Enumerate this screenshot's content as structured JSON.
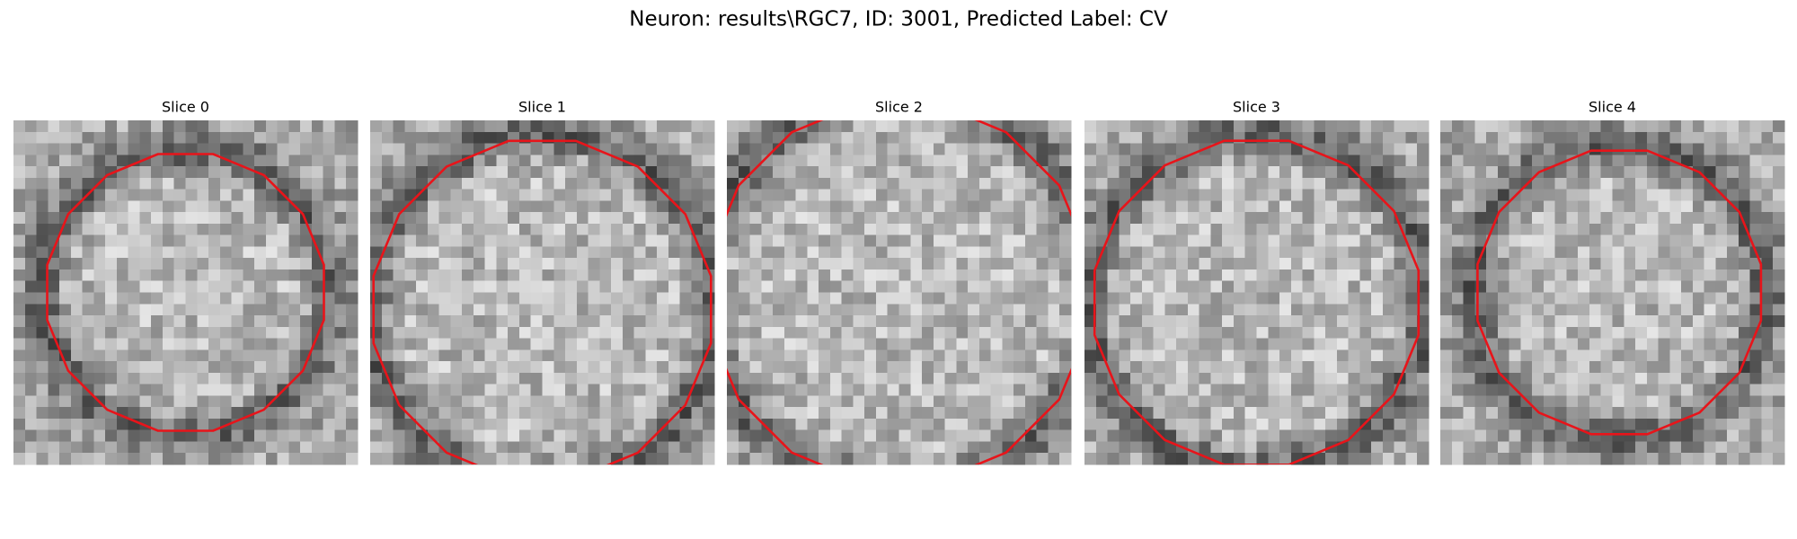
{
  "title": "Neuron: results\\RGC7, ID: 3001, Predicted Label: CV",
  "panels": [
    {
      "title": "Slice 0"
    },
    {
      "title": "Slice 1"
    },
    {
      "title": "Slice 2"
    },
    {
      "title": "Slice 3"
    },
    {
      "title": "Slice 4"
    }
  ]
}
